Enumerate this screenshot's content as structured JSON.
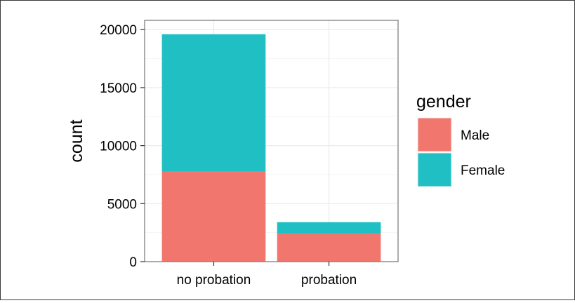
{
  "chart_data": {
    "type": "bar",
    "stacked": true,
    "title": "",
    "xlabel": "",
    "ylabel": "count",
    "categories": [
      "no probation",
      "probation"
    ],
    "series": [
      {
        "name": "Male",
        "color": "#F1766D",
        "values": [
          7800,
          2450
        ]
      },
      {
        "name": "Female",
        "color": "#1FBFC3",
        "values": [
          11800,
          950
        ]
      }
    ],
    "ylim": [
      0,
      20800
    ],
    "yticks": [
      0,
      5000,
      10000,
      15000,
      20000
    ],
    "ytick_labels": [
      "0",
      "5000",
      "10000",
      "15000",
      "20000"
    ],
    "grid": true,
    "legend": {
      "title": "gender",
      "position": "right",
      "entries": [
        "Male",
        "Female"
      ]
    }
  }
}
